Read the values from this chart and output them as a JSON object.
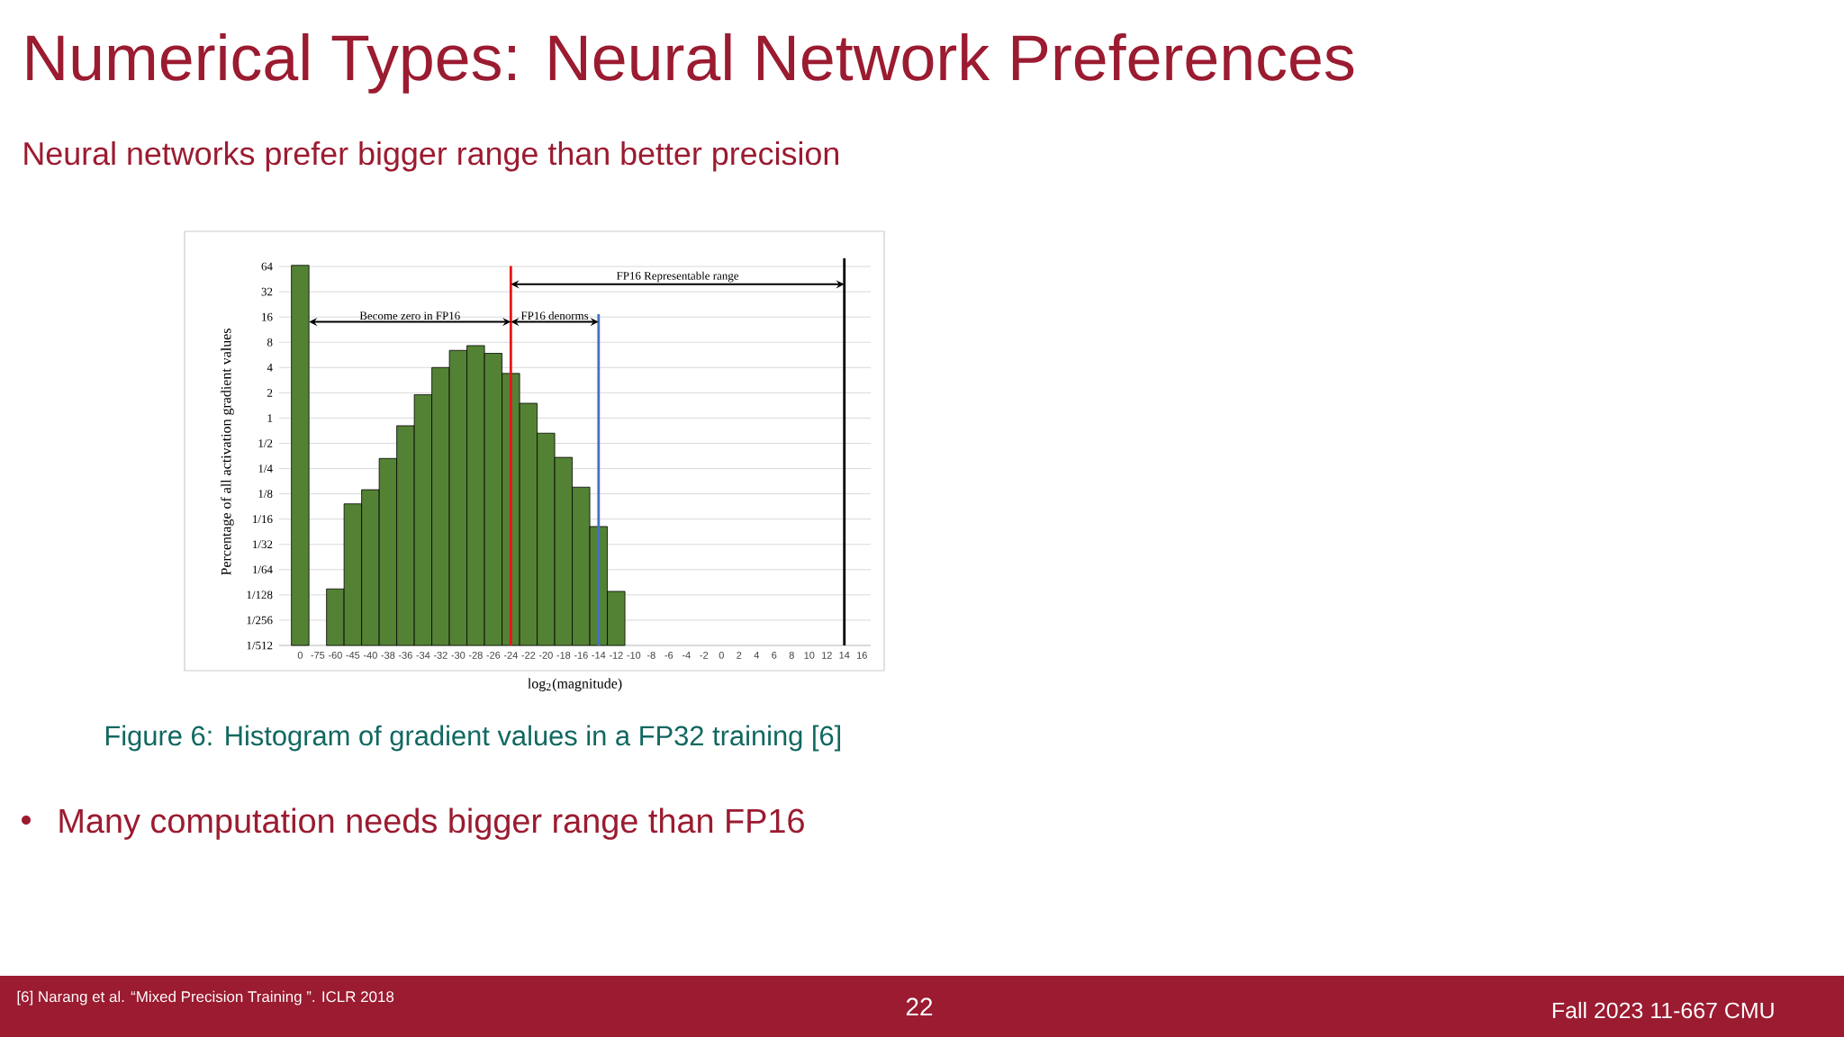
{
  "chart_data": {
    "type": "bar",
    "title": "Numerical Types: Neural Network Preferences",
    "subtitle": "Neural networks prefer bigger range than better precision",
    "xlabel": "log$_{2}$(magnitude)",
    "ylabel": "Percentage of all activation gradient values",
    "categories": [
      "0",
      "-75",
      "-60",
      "-45",
      "-40",
      "-38",
      "-36",
      "-34",
      "-32",
      "-30",
      "-28",
      "-26",
      "-24",
      "-22",
      "-20",
      "-18",
      "-16",
      "-14",
      "-12",
      "-10",
      "-8",
      "-6",
      "-4",
      "-2",
      "0",
      "2",
      "4",
      "6",
      "8",
      "10",
      "12",
      "14",
      "16"
    ],
    "values": [
      66,
      null,
      0.0092,
      0.095,
      0.14,
      0.33,
      0.81,
      1.9,
      4.0,
      6.4,
      7.3,
      5.9,
      3.4,
      1.5,
      0.66,
      0.34,
      0.15,
      0.051,
      0.0086,
      null,
      null,
      null,
      null,
      null,
      null,
      null,
      null,
      null,
      null,
      null,
      null,
      null,
      null
    ],
    "color": "#548235",
    "log": "y",
    "grid": "y",
    "ylim": [
      0.001953125,
      80
    ],
    "yticks": [
      {
        "value": 0.001953125,
        "label": "1/512"
      },
      {
        "value": 0.00390625,
        "label": "1/256"
      },
      {
        "value": 0.0078125,
        "label": "1/128"
      },
      {
        "value": 0.015625,
        "label": "1/64"
      },
      {
        "value": 0.03125,
        "label": "1/32"
      },
      {
        "value": 0.0625,
        "label": "1/16"
      },
      {
        "value": 0.125,
        "label": "1/8"
      },
      {
        "value": 0.25,
        "label": "1/4"
      },
      {
        "value": 0.5,
        "label": "1/2"
      },
      1,
      2,
      4,
      8,
      16,
      32,
      64
    ],
    "ref_lines": [
      {
        "axis": "x",
        "value": "-24",
        "color": "#e8141b"
      },
      {
        "axis": "x",
        "value": "-14",
        "color": "#4472c4"
      },
      {
        "axis": "x",
        "value": "14",
        "color": "#000000"
      }
    ],
    "annotations": [
      "Become zero in FP16",
      "FP16 denorms",
      "FP16 Representable range",
      "Figure 6: Histogram of gradient values in a FP32 training [6]",
      "Many computation needs bigger range than FP16",
      "[6] Narang et al. “Mixed Precision Training ”. ICLR 2018",
      "22",
      "Fall 2023 11-667 CMU"
    ]
  }
}
